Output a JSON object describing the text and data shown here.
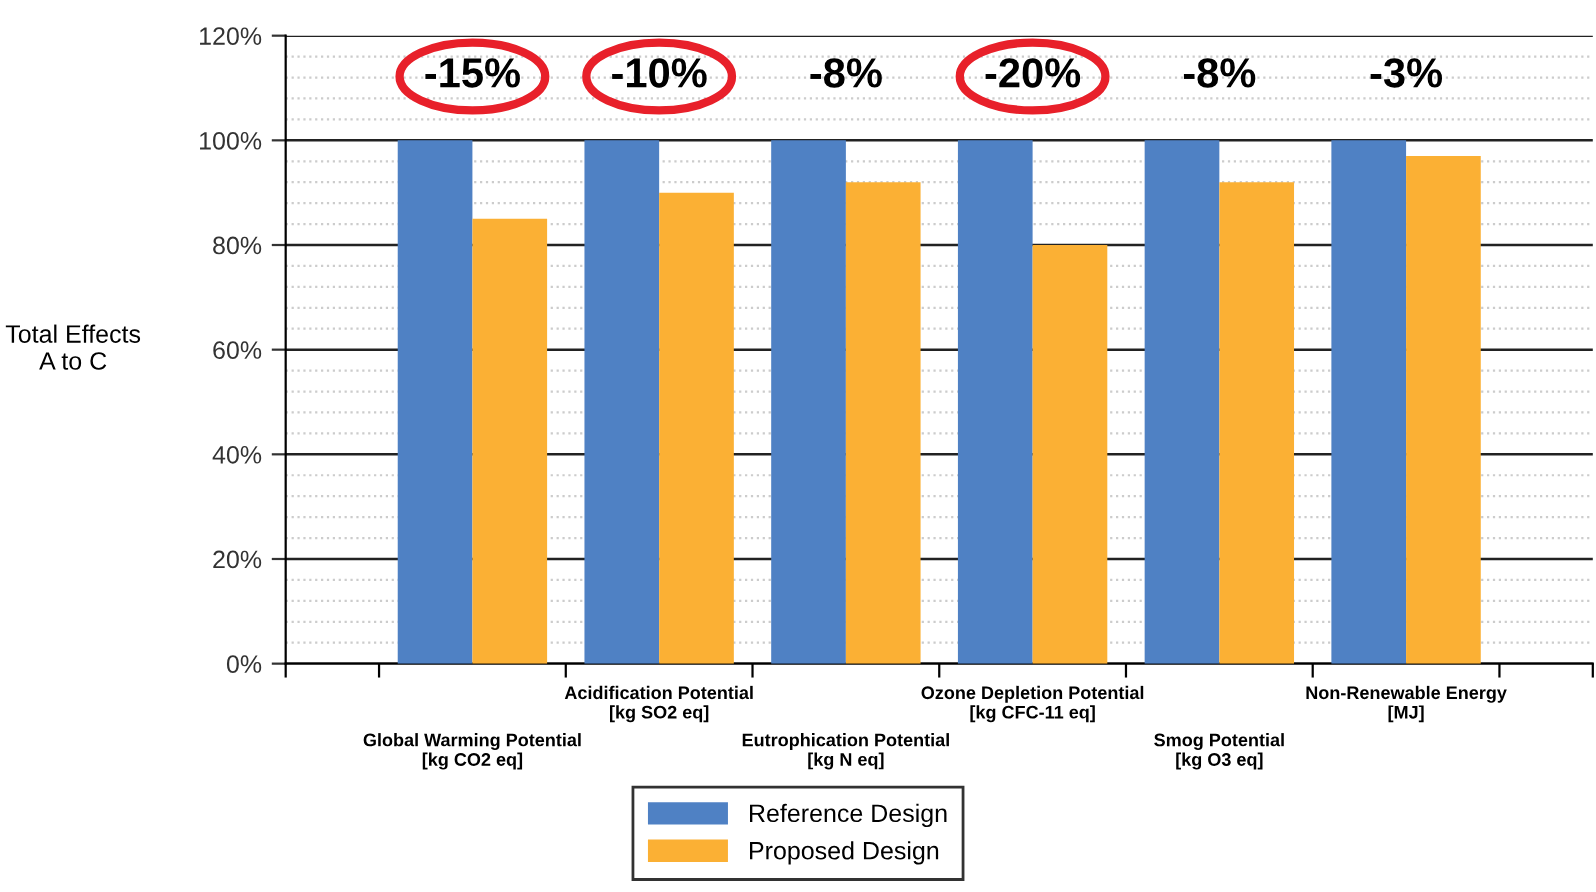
{
  "chart_data": {
    "type": "bar",
    "ylabel": "Total Effects\nA to C",
    "categories": [
      "Global Warming Potential\n[kg CO2 eq]",
      "Acidification Potential\n[kg SO2 eq]",
      "Eutrophication Potential\n[kg N eq]",
      "Ozone Depletion Potential\n[kg CFC-11 eq]",
      "Smog Potential\n[kg O3 eq]",
      "Non-Renewable Energy\n[MJ]"
    ],
    "series": [
      {
        "name": "Reference Design",
        "color": "#4f81c4",
        "values": [
          100,
          100,
          100,
          100,
          100,
          100
        ]
      },
      {
        "name": "Proposed Design",
        "color": "#fbb034",
        "values": [
          85,
          90,
          92,
          80,
          92,
          97
        ]
      }
    ],
    "ylim": [
      0,
      120
    ],
    "yticks": [
      {
        "value": 0,
        "label": "0%"
      },
      {
        "value": 20,
        "label": "20%"
      },
      {
        "value": 40,
        "label": "40%"
      },
      {
        "value": 60,
        "label": "60%"
      },
      {
        "value": 80,
        "label": "80%"
      },
      {
        "value": 100,
        "label": "100%"
      },
      {
        "value": 120,
        "label": "120%"
      }
    ],
    "annotations": [
      "-15%",
      "-10%",
      "-8%",
      "-20%",
      "-8%",
      "-3%"
    ],
    "grid": "y",
    "legend": "bottom"
  }
}
